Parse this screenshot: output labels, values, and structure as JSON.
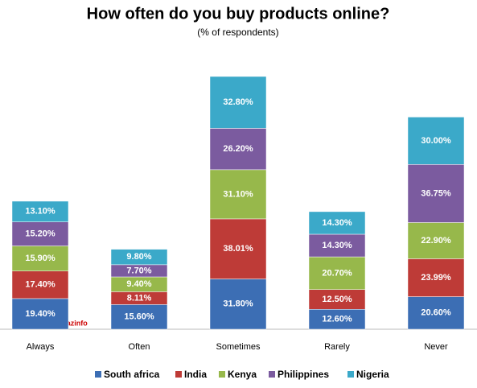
{
  "chart_data": {
    "type": "stacked_bar",
    "title": "How often do you buy products online?",
    "subtitle": "(% of respondents)",
    "watermark": "dazinfo",
    "categories": [
      "Always",
      "Often",
      "Sometimes",
      "Rarely",
      "Never"
    ],
    "series": [
      {
        "name": "South africa",
        "color": "#3c6eb4",
        "values": [
          19.4,
          15.6,
          31.8,
          12.6,
          20.6
        ],
        "value_labels": [
          "19.40%",
          "15.60%",
          "31.80%",
          "12.60%",
          "20.60%"
        ]
      },
      {
        "name": "India",
        "color": "#be3b37",
        "values": [
          17.4,
          8.11,
          38.01,
          12.5,
          23.99
        ],
        "value_labels": [
          "17.40%",
          "8.11%",
          "38.01%",
          "12.50%",
          "23.99%"
        ]
      },
      {
        "name": "Kenya",
        "color": "#97b84b",
        "values": [
          15.9,
          9.4,
          31.1,
          20.7,
          22.9
        ],
        "value_labels": [
          "15.90%",
          "9.40%",
          "31.10%",
          "20.70%",
          "22.90%"
        ]
      },
      {
        "name": "Philippines",
        "color": "#7b5b9f",
        "values": [
          15.2,
          7.7,
          26.2,
          14.3,
          36.75
        ],
        "value_labels": [
          "15.20%",
          "7.70%",
          "26.20%",
          "14.30%",
          "36.75%"
        ]
      },
      {
        "name": "Nigeria",
        "color": "#3ba9c9",
        "values": [
          13.1,
          9.8,
          32.8,
          14.3,
          30.0
        ],
        "value_labels": [
          "13.10%",
          "9.80%",
          "32.80%",
          "14.30%",
          "30.00%"
        ]
      }
    ],
    "legend": "bottom"
  }
}
